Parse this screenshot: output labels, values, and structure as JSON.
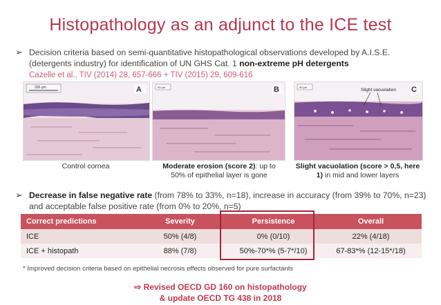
{
  "title": "Histopathology as an adjunct to the ICE test",
  "bullet1": {
    "text": "Decision criteria based on semi-quantitative histopathological observations developed by A.I.S.E. (detergents industry) for identification of UN GHS Cat. 1 ",
    "bold": "non-extreme pH detergents",
    "reference": "Cazelle et al., TIV (2014) 28, 657-666 + TIV (2015) 29, 609-616"
  },
  "panels": [
    {
      "letter": "A",
      "scale_label": "200 µm",
      "caption_plain": "Control cornea",
      "caption_bold": ""
    },
    {
      "letter": "B",
      "scale_label": "50 µm",
      "caption_bold": "Moderate erosion (score 2)",
      "caption_plain": ": up to 50% of epithelial layer is gone"
    },
    {
      "letter": "C",
      "scale_label": "50 µm",
      "annotation": "Slight vacuolation",
      "caption_bold": "Slight vacuolation (score > 0,5, here 1)",
      "caption_plain": " in mid and lower layers"
    }
  ],
  "bullet2": {
    "bold": "Decrease in false negative rate",
    "text": " (from 78% to 33%, n=18), increase in accuracy (from 39% to 70%, n=23) and acceptable false positive rate (from 0% to 20%, n=5)"
  },
  "table": {
    "headers": [
      "Correct predictions",
      "Severity",
      "Persistence",
      "Overall"
    ],
    "rows": [
      [
        "ICE",
        "50% (4/8)",
        "0% (0/10)",
        "22% (4/18)"
      ],
      [
        "ICE + histopath",
        "88% (7/8)",
        "50%-70*% (5-7*/10)",
        "67-83*% (12-15*/18)"
      ]
    ],
    "header_color": "#c9525f",
    "highlight_color": "#a3243b"
  },
  "footnote": "* Improved decision criteria based on epithelial necrosis effects observed for pure surfactants",
  "revised": {
    "line1": "Revised OECD GD 160 on histopathology",
    "line2": "& update OECD TG 438 in 2018"
  },
  "colors": {
    "title": "#b5374f",
    "accent": "#c0394d"
  }
}
